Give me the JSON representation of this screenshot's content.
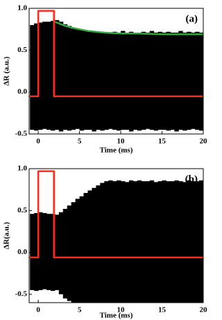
{
  "chart_data": [
    {
      "type": "line",
      "annotation": "(a)",
      "xlabel": "Time (ms)",
      "ylabel": "ΔR (a.u.)",
      "xlim": [
        -1.1,
        20
      ],
      "xticks": [
        0,
        5,
        10,
        15,
        20
      ],
      "ylim": [
        -0.5,
        1.0
      ],
      "yticks": [
        {
          "value": 1.0,
          "label": "1.0"
        },
        0.5,
        {
          "value": 0.0,
          "label": "0.0"
        },
        -0.5
      ],
      "series": [
        {
          "color": "#000000",
          "x": [
            -1,
            -0.5,
            0,
            0.5,
            1,
            1.5,
            2,
            2.5,
            3,
            3.5,
            4,
            4.5,
            5,
            5.5,
            6,
            6.5,
            7,
            7.5,
            8,
            8.5,
            9,
            9.5,
            10,
            10.5,
            11,
            11.5,
            12,
            12.5,
            13,
            13.5,
            14,
            14.5,
            15,
            15.5,
            16,
            16.5,
            17,
            17.5,
            18,
            18.5,
            19,
            19.5,
            20
          ],
          "values": [
            0.8,
            0.82,
            0.83,
            0.84,
            0.84,
            0.85,
            0.86,
            0.84,
            0.81,
            0.79,
            0.77,
            0.76,
            0.75,
            0.74,
            0.73,
            0.73,
            0.72,
            0.72,
            0.71,
            0.71,
            0.72,
            0.71,
            0.73,
            0.71,
            0.72,
            0.71,
            0.71,
            0.72,
            0.71,
            0.73,
            0.71,
            0.72,
            0.71,
            0.72,
            0.71,
            0.71,
            0.73,
            0.71,
            0.72,
            0.71,
            0.72,
            0.71,
            0.72
          ],
          "values_low": [
            -0.45,
            -0.46,
            -0.45,
            -0.44,
            -0.45,
            -0.46,
            -0.45,
            -0.47,
            -0.45,
            -0.46,
            -0.45,
            -0.44,
            -0.46,
            -0.45,
            -0.45,
            -0.47,
            -0.45,
            -0.46,
            -0.45,
            -0.44,
            -0.45,
            -0.46,
            -0.45,
            -0.45,
            -0.47,
            -0.45,
            -0.46,
            -0.45,
            -0.44,
            -0.45,
            -0.46,
            -0.45,
            -0.45,
            -0.46,
            -0.45,
            -0.47,
            -0.45,
            -0.46,
            -0.45,
            -0.44,
            -0.45,
            -0.46,
            -0.45
          ]
        },
        {
          "color": "#ff2a1a",
          "x": [
            -1.1,
            0,
            0,
            1.9,
            1.9,
            20
          ],
          "values": [
            -0.05,
            -0.05,
            0.97,
            0.97,
            -0.05,
            -0.05
          ]
        },
        {
          "color": "#33aa44",
          "x": [
            2,
            3,
            4,
            5,
            6,
            7,
            8,
            10,
            12,
            15,
            20
          ],
          "values": [
            0.84,
            0.8,
            0.77,
            0.75,
            0.73,
            0.72,
            0.71,
            0.7,
            0.7,
            0.69,
            0.69
          ]
        }
      ]
    },
    {
      "type": "line",
      "annotation": "(b)",
      "xlabel": "Time (ms)",
      "ylabel": "ΔR(a.u.)",
      "xlim": [
        -1.1,
        20
      ],
      "xticks": [
        0,
        5,
        10,
        15,
        20
      ],
      "ylim": [
        -0.6,
        1.0
      ],
      "yticks": [
        {
          "value": 1.0,
          "label": "1.0"
        },
        0.5,
        {
          "value": 0.0,
          "label": "0.0"
        },
        -0.5
      ],
      "series": [
        {
          "color": "#000000",
          "x": [
            -1,
            -0.5,
            0,
            0.5,
            1,
            1.5,
            2,
            2.5,
            3,
            3.5,
            4,
            4.5,
            5,
            5.5,
            6,
            6.5,
            7,
            7.5,
            8,
            8.5,
            9,
            9.5,
            10,
            10.5,
            11,
            11.5,
            12,
            12.5,
            13,
            13.5,
            14,
            14.5,
            15,
            15.5,
            16,
            16.5,
            17,
            17.5,
            18,
            18.5,
            19,
            19.5,
            20
          ],
          "values": [
            0.46,
            0.47,
            0.48,
            0.47,
            0.46,
            0.46,
            0.45,
            0.48,
            0.52,
            0.56,
            0.6,
            0.64,
            0.67,
            0.71,
            0.74,
            0.77,
            0.8,
            0.83,
            0.85,
            0.86,
            0.85,
            0.86,
            0.85,
            0.84,
            0.86,
            0.85,
            0.86,
            0.85,
            0.85,
            0.86,
            0.84,
            0.85,
            0.86,
            0.85,
            0.85,
            0.86,
            0.85,
            0.84,
            0.86,
            0.85,
            0.85,
            0.86,
            0.85
          ],
          "values_low": [
            -0.45,
            -0.46,
            -0.45,
            -0.44,
            -0.45,
            -0.46,
            -0.45,
            -0.5,
            -0.55,
            -0.58,
            -0.6,
            -0.6,
            -0.6,
            -0.6,
            -0.6,
            -0.6,
            -0.6,
            -0.6,
            -0.6,
            -0.6,
            -0.6,
            -0.6,
            -0.6,
            -0.6,
            -0.6,
            -0.6,
            -0.6,
            -0.6,
            -0.6,
            -0.6,
            -0.6,
            -0.6,
            -0.6,
            -0.6,
            -0.6,
            -0.6,
            -0.6,
            -0.6,
            -0.6,
            -0.6,
            -0.6,
            -0.6,
            -0.6
          ]
        },
        {
          "color": "#ff2a1a",
          "x": [
            -1.1,
            0,
            0,
            1.9,
            1.9,
            20
          ],
          "values": [
            -0.06,
            -0.06,
            0.97,
            0.97,
            -0.06,
            -0.06
          ]
        }
      ]
    }
  ]
}
